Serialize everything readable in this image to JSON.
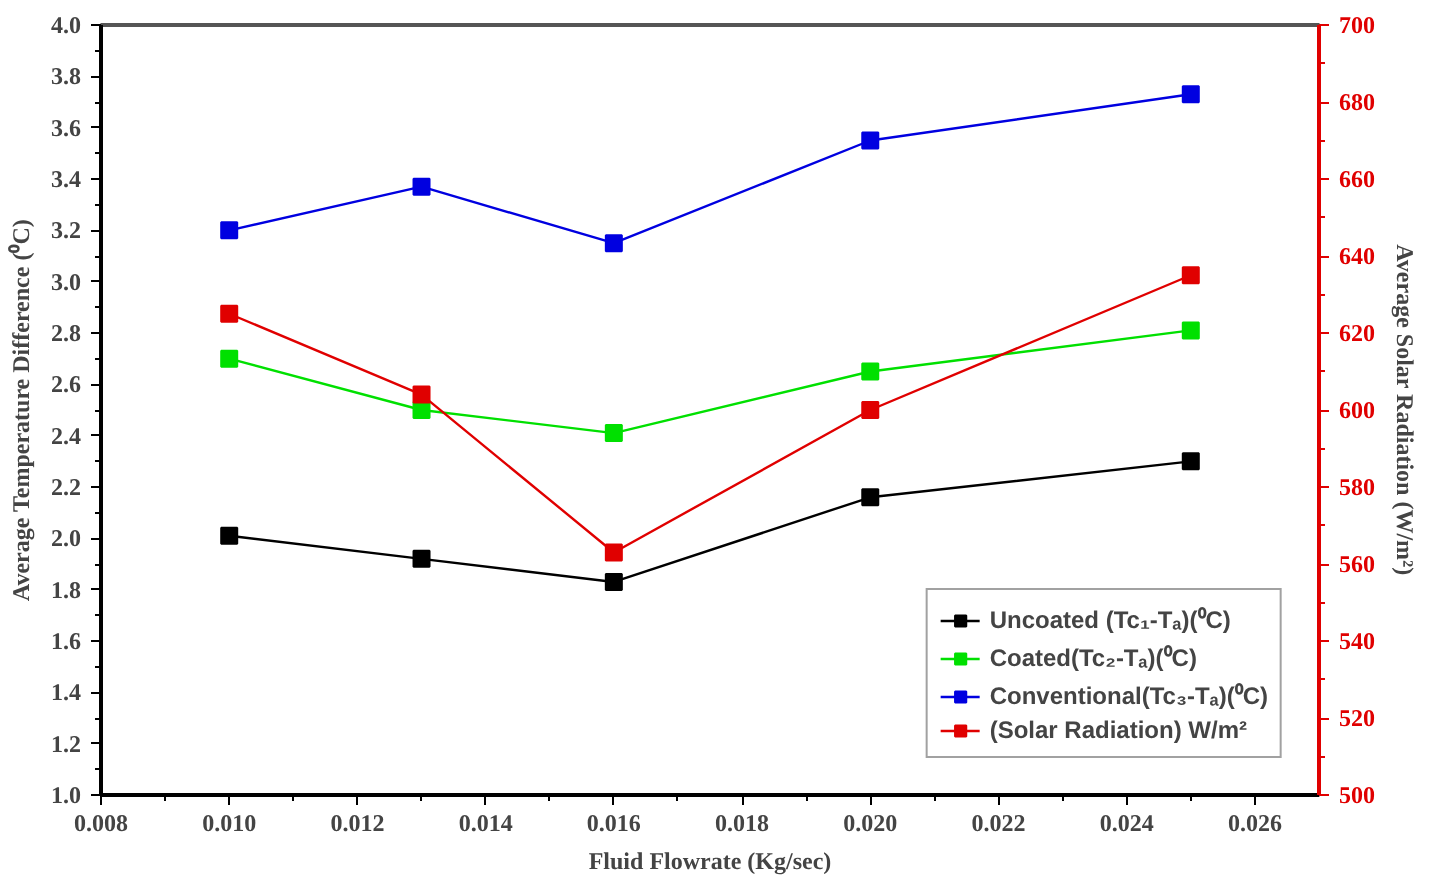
{
  "chart_data": {
    "type": "line",
    "xlabel": "Fluid Flowrate (Kg/sec)",
    "ylabel": "Average Temperature Difference (⁰C)",
    "y2label": "Average Solar Radiation (W/m²)",
    "x": [
      0.01,
      0.013,
      0.016,
      0.02,
      0.025
    ],
    "series": [
      {
        "name": "Uncoated (Tc₁-Tₐ)(⁰C)",
        "color": "#000000",
        "values": [
          2.01,
          1.92,
          1.83,
          2.16,
          2.3
        ]
      },
      {
        "name": "Coated(Tc₂-Tₐ)(⁰C)",
        "color": "#00e000",
        "values": [
          2.7,
          2.5,
          2.41,
          2.65,
          2.81
        ]
      },
      {
        "name": "Conventional(Tc₃-Tₐ)(⁰C)",
        "color": "#0000e0",
        "values": [
          3.2,
          3.37,
          3.15,
          3.55,
          3.73
        ]
      },
      {
        "name": "(Solar Radiation) W/m²",
        "color": "#e00000",
        "values": [
          625,
          604,
          563,
          600,
          635
        ],
        "axis": "y2"
      }
    ],
    "xlim": [
      0.008,
      0.027
    ],
    "xticks": [
      {
        "value": 0.008,
        "label": "0.008"
      },
      {
        "value": 0.01,
        "label": "0.010"
      },
      {
        "value": 0.012,
        "label": "0.012"
      },
      {
        "value": 0.014,
        "label": "0.014"
      },
      {
        "value": 0.016,
        "label": "0.016"
      },
      {
        "value": 0.018,
        "label": "0.018"
      },
      {
        "value": 0.02,
        "label": "0.020"
      },
      {
        "value": 0.022,
        "label": "0.022"
      },
      {
        "value": 0.024,
        "label": "0.024"
      },
      {
        "value": 0.026,
        "label": "0.026"
      }
    ],
    "ylim": [
      1.0,
      4.0
    ],
    "yticks": [
      {
        "value": 1.0,
        "label": "1.0"
      },
      1.2,
      1.4,
      1.6,
      1.8,
      {
        "value": 2.0,
        "label": "2.0"
      },
      2.2,
      2.4,
      2.6,
      2.8,
      {
        "value": 3.0,
        "label": "3.0"
      },
      3.2,
      3.4,
      3.6,
      3.8,
      {
        "value": 4.0,
        "label": "4.0"
      }
    ],
    "y2lim": [
      500,
      700
    ],
    "y2ticks": [
      500,
      520,
      540,
      560,
      580,
      600,
      620,
      640,
      660,
      680,
      700
    ],
    "grid": false,
    "legend": "bottom right",
    "marker": "square",
    "line_style": "solid"
  }
}
